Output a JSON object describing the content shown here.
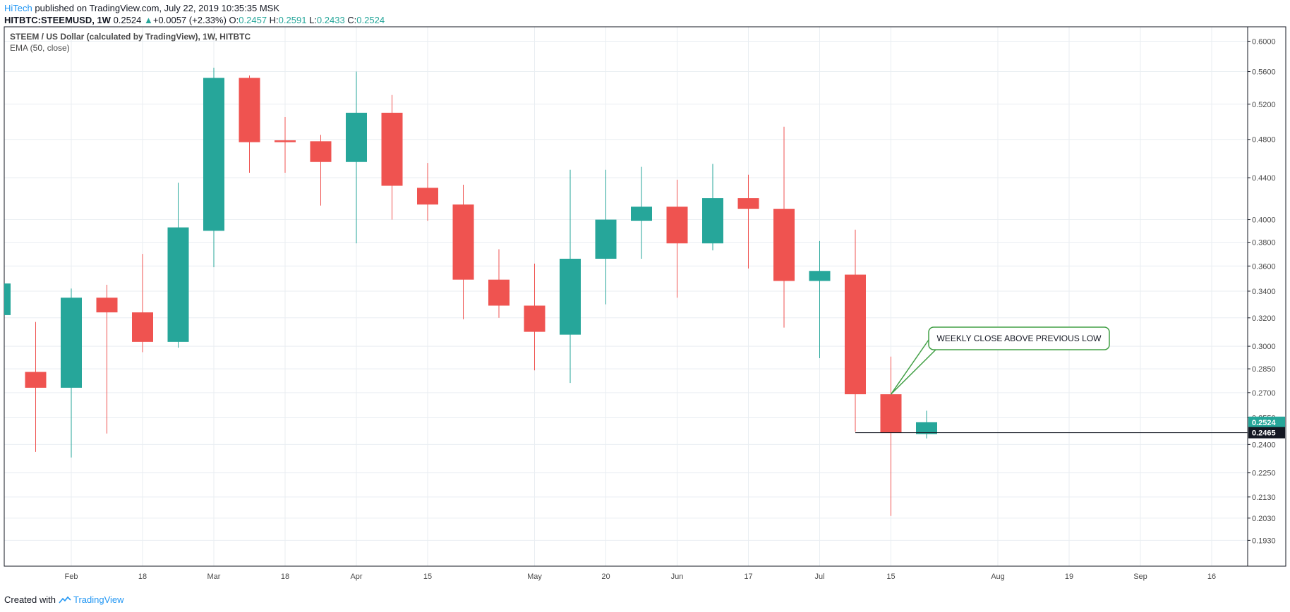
{
  "header": {
    "author": "HiTech",
    "published_text": " published on TradingView.com, July 22, 2019 10:35:35 MSK",
    "symbol": "HITBTC:STEEMUSD, 1W",
    "price": "0.2524",
    "change_arrow": "▲",
    "change": "+0.0057 (+2.33%)",
    "o_label": "O:",
    "o_val": "0.2457",
    "h_label": "H:",
    "h_val": "0.2591",
    "l_label": "L:",
    "l_val": "0.2433",
    "c_label": "C:",
    "c_val": "0.2524"
  },
  "footer": {
    "created_with": "Created with",
    "brand": "TradingView"
  },
  "chart_data": {
    "type": "candlestick",
    "title": "STEEM / US Dollar (calculated by TradingView), 1W, HITBTC",
    "indicator": "EMA (50, close)",
    "y_scale": "log",
    "ylim": [
      0.182,
      0.62
    ],
    "y_ticks": [
      "0.6000",
      "0.5600",
      "0.5200",
      "0.4800",
      "0.4400",
      "0.4000",
      "0.3800",
      "0.3600",
      "0.3400",
      "0.3200",
      "0.3000",
      "0.2850",
      "0.2700",
      "0.2550",
      "0.2400",
      "0.2250",
      "0.2130",
      "0.2030",
      "0.1930"
    ],
    "x_ticks": [
      {
        "i": 2,
        "label": "Feb"
      },
      {
        "i": 4,
        "label": "18"
      },
      {
        "i": 6,
        "label": "Mar"
      },
      {
        "i": 8,
        "label": "18"
      },
      {
        "i": 10,
        "label": "Apr"
      },
      {
        "i": 12,
        "label": "15"
      },
      {
        "i": 15,
        "label": "May"
      },
      {
        "i": 17,
        "label": "20"
      },
      {
        "i": 19,
        "label": "Jun"
      },
      {
        "i": 21,
        "label": "17"
      },
      {
        "i": 23,
        "label": "Jul"
      },
      {
        "i": 25,
        "label": "15"
      },
      {
        "i": 28,
        "label": "Aug"
      },
      {
        "i": 30,
        "label": "19"
      },
      {
        "i": 32,
        "label": "Sep"
      },
      {
        "i": 34,
        "label": "16"
      }
    ],
    "candles": [
      {
        "o": 0.322,
        "h": 0.35,
        "l": 0.318,
        "c": 0.346
      },
      {
        "o": 0.283,
        "h": 0.317,
        "l": 0.236,
        "c": 0.273
      },
      {
        "o": 0.273,
        "h": 0.342,
        "l": 0.233,
        "c": 0.335
      },
      {
        "o": 0.335,
        "h": 0.345,
        "l": 0.246,
        "c": 0.324
      },
      {
        "o": 0.324,
        "h": 0.37,
        "l": 0.296,
        "c": 0.303
      },
      {
        "o": 0.303,
        "h": 0.435,
        "l": 0.299,
        "c": 0.393
      },
      {
        "o": 0.39,
        "h": 0.565,
        "l": 0.359,
        "c": 0.552
      },
      {
        "o": 0.552,
        "h": 0.555,
        "l": 0.445,
        "c": 0.477
      },
      {
        "o": 0.479,
        "h": 0.505,
        "l": 0.445,
        "c": 0.477
      },
      {
        "o": 0.478,
        "h": 0.485,
        "l": 0.413,
        "c": 0.456
      },
      {
        "o": 0.456,
        "h": 0.56,
        "l": 0.379,
        "c": 0.51
      },
      {
        "o": 0.51,
        "h": 0.531,
        "l": 0.4,
        "c": 0.432
      },
      {
        "o": 0.43,
        "h": 0.455,
        "l": 0.399,
        "c": 0.414
      },
      {
        "o": 0.414,
        "h": 0.433,
        "l": 0.319,
        "c": 0.349
      },
      {
        "o": 0.349,
        "h": 0.374,
        "l": 0.32,
        "c": 0.329
      },
      {
        "o": 0.329,
        "h": 0.362,
        "l": 0.284,
        "c": 0.31
      },
      {
        "o": 0.308,
        "h": 0.448,
        "l": 0.276,
        "c": 0.366
      },
      {
        "o": 0.366,
        "h": 0.448,
        "l": 0.33,
        "c": 0.4
      },
      {
        "o": 0.399,
        "h": 0.451,
        "l": 0.366,
        "c": 0.412
      },
      {
        "o": 0.412,
        "h": 0.438,
        "l": 0.335,
        "c": 0.379
      },
      {
        "o": 0.379,
        "h": 0.454,
        "l": 0.373,
        "c": 0.42
      },
      {
        "o": 0.42,
        "h": 0.443,
        "l": 0.358,
        "c": 0.41
      },
      {
        "o": 0.41,
        "h": 0.494,
        "l": 0.313,
        "c": 0.348
      },
      {
        "o": 0.348,
        "h": 0.381,
        "l": 0.292,
        "c": 0.356
      },
      {
        "o": 0.353,
        "h": 0.391,
        "l": 0.247,
        "c": 0.269
      },
      {
        "o": 0.269,
        "h": 0.293,
        "l": 0.204,
        "c": 0.2465
      },
      {
        "o": 0.2457,
        "h": 0.2591,
        "l": 0.2433,
        "c": 0.2524
      }
    ],
    "support_line": {
      "value": 0.2465,
      "from_index": 24
    },
    "price_labels": [
      {
        "value": 0.2524,
        "text": "0.2524",
        "color": "#26a69a"
      },
      {
        "value": 0.2465,
        "text": "0.2465",
        "color": "#131722"
      }
    ],
    "annotation": {
      "text": "WEEKLY CLOSE ABOVE PREVIOUS LOW",
      "anchor_index": 25,
      "anchor_value": 0.269,
      "color": "#43a047"
    },
    "colors": {
      "up": "#26a69a",
      "down": "#ef5350",
      "grid": "#e9eef2",
      "axis": "#131722",
      "tick_text": "#4a4a4a"
    }
  }
}
